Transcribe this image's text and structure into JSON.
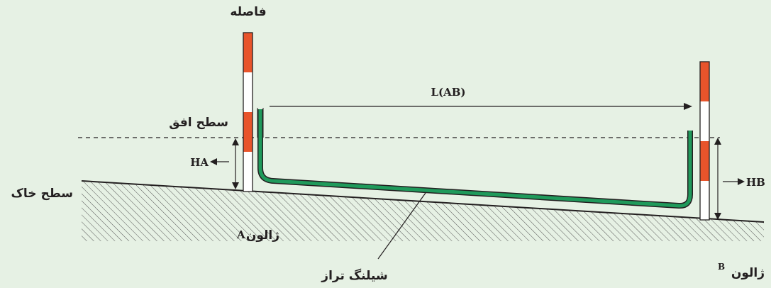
{
  "labels": {
    "distance": "فاصله",
    "horizontal_plane": "سطح افق",
    "ground_surface": "سطح خاک",
    "level_hose": "شیلنگ تراز",
    "rod_a_text": "ژالون",
    "rod_a_letter": "A",
    "rod_b_text": "ژالون",
    "rod_b_letter": "B",
    "length": "L(AB)",
    "height_a": "HA",
    "height_b": "HB"
  },
  "colors": {
    "background": "#e6f1e4",
    "rod_red": "#e8542b",
    "rod_white": "#ffffff",
    "hose": "#1f9a5b",
    "ink": "#231f20"
  }
}
